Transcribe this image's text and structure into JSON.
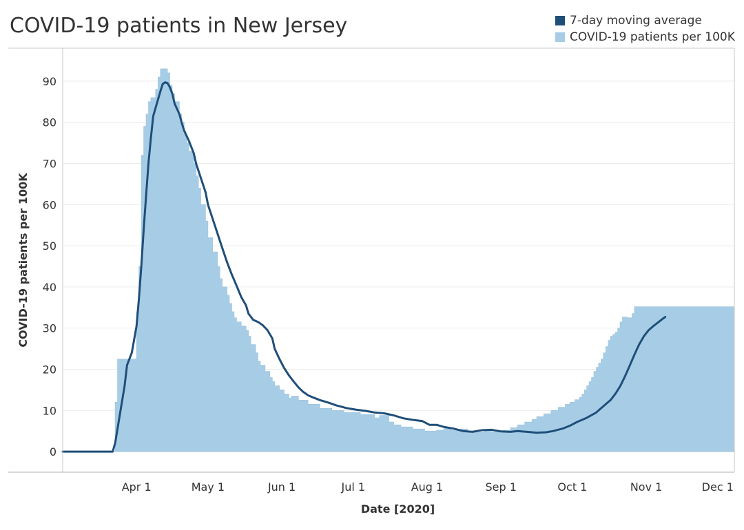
{
  "title": "COVID-19 patients in New Jersey",
  "legend": [
    {
      "label": "7-day moving average",
      "color": "#1f4e79"
    },
    {
      "label": "COVID-19 patients per 100K",
      "color": "#a7cde6"
    }
  ],
  "chart_data": {
    "type": "area",
    "title": "COVID-19 patients in New Jersey",
    "xlabel": "Date [2020]",
    "ylabel": "COVID-19 patients per 100K",
    "x_axis": {
      "start": "2020-03-01",
      "end": "2020-12-08"
    },
    "ylim": [
      -5,
      98
    ],
    "grid": true,
    "yticks": [
      0,
      10,
      20,
      30,
      40,
      50,
      60,
      70,
      80,
      90
    ],
    "xticks": [
      {
        "date": "2020-04-01",
        "label": "Apr 1"
      },
      {
        "date": "2020-05-01",
        "label": "May 1"
      },
      {
        "date": "2020-06-01",
        "label": "Jun 1"
      },
      {
        "date": "2020-07-01",
        "label": "Jul 1"
      },
      {
        "date": "2020-08-01",
        "label": "Aug 1"
      },
      {
        "date": "2020-09-01",
        "label": "Sep 1"
      },
      {
        "date": "2020-10-01",
        "label": "Oct 1"
      },
      {
        "date": "2020-11-01",
        "label": "Nov 1"
      },
      {
        "date": "2020-12-01",
        "label": "Dec 1"
      }
    ],
    "series": [
      {
        "name": "COVID-19 patients per 100K",
        "color": "#a7cde6",
        "style": "step-area",
        "points": [
          [
            "2020-03-01",
            0
          ],
          [
            "2020-03-22",
            0
          ],
          [
            "2020-03-23",
            12
          ],
          [
            "2020-03-24",
            22.5
          ],
          [
            "2020-03-31",
            22.5
          ],
          [
            "2020-04-01",
            34
          ],
          [
            "2020-04-02",
            45
          ],
          [
            "2020-04-03",
            72
          ],
          [
            "2020-04-04",
            79
          ],
          [
            "2020-04-05",
            82
          ],
          [
            "2020-04-06",
            85
          ],
          [
            "2020-04-07",
            86
          ],
          [
            "2020-04-09",
            88
          ],
          [
            "2020-04-10",
            91
          ],
          [
            "2020-04-11",
            93
          ],
          [
            "2020-04-14",
            92
          ],
          [
            "2020-04-15",
            89
          ],
          [
            "2020-04-16",
            87
          ],
          [
            "2020-04-17",
            85
          ],
          [
            "2020-04-19",
            82
          ],
          [
            "2020-04-20",
            80
          ],
          [
            "2020-04-21",
            77
          ],
          [
            "2020-04-22",
            75
          ],
          [
            "2020-04-23",
            73
          ],
          [
            "2020-04-25",
            70
          ],
          [
            "2020-04-26",
            67
          ],
          [
            "2020-04-27",
            64
          ],
          [
            "2020-04-28",
            60
          ],
          [
            "2020-04-30",
            56
          ],
          [
            "2020-05-01",
            52
          ],
          [
            "2020-05-03",
            48.5
          ],
          [
            "2020-05-05",
            45
          ],
          [
            "2020-05-06",
            42
          ],
          [
            "2020-05-07",
            40
          ],
          [
            "2020-05-09",
            38
          ],
          [
            "2020-05-10",
            36
          ],
          [
            "2020-05-11",
            34
          ],
          [
            "2020-05-12",
            32.5
          ],
          [
            "2020-05-13",
            31.5
          ],
          [
            "2020-05-15",
            30.5
          ],
          [
            "2020-05-17",
            29.5
          ],
          [
            "2020-05-18",
            28
          ],
          [
            "2020-05-19",
            26
          ],
          [
            "2020-05-21",
            24
          ],
          [
            "2020-05-22",
            22
          ],
          [
            "2020-05-23",
            21
          ],
          [
            "2020-05-25",
            19.5
          ],
          [
            "2020-05-27",
            18
          ],
          [
            "2020-05-28",
            17
          ],
          [
            "2020-05-29",
            16
          ],
          [
            "2020-05-31",
            15
          ],
          [
            "2020-06-02",
            14
          ],
          [
            "2020-06-04",
            13
          ],
          [
            "2020-06-05",
            13.5
          ],
          [
            "2020-06-08",
            12.5
          ],
          [
            "2020-06-12",
            11.5
          ],
          [
            "2020-06-17",
            10.5
          ],
          [
            "2020-06-22",
            10
          ],
          [
            "2020-06-27",
            9.5
          ],
          [
            "2020-07-04",
            9
          ],
          [
            "2020-07-10",
            8.2
          ],
          [
            "2020-07-12",
            8.8
          ],
          [
            "2020-07-16",
            7.2
          ],
          [
            "2020-07-18",
            6.5
          ],
          [
            "2020-07-21",
            6
          ],
          [
            "2020-07-26",
            5.5
          ],
          [
            "2020-07-31",
            5
          ],
          [
            "2020-08-05",
            5.2
          ],
          [
            "2020-08-08",
            5.7
          ],
          [
            "2020-08-11",
            5.2
          ],
          [
            "2020-08-15",
            5.5
          ],
          [
            "2020-08-18",
            5
          ],
          [
            "2020-08-22",
            4.7
          ],
          [
            "2020-08-25",
            5.1
          ],
          [
            "2020-08-28",
            4.8
          ],
          [
            "2020-09-02",
            5.2
          ],
          [
            "2020-09-05",
            5.8
          ],
          [
            "2020-09-08",
            6.5
          ],
          [
            "2020-09-11",
            7.2
          ],
          [
            "2020-09-14",
            7.8
          ],
          [
            "2020-09-16",
            8.5
          ],
          [
            "2020-09-19",
            9.2
          ],
          [
            "2020-09-22",
            10
          ],
          [
            "2020-09-25",
            10.8
          ],
          [
            "2020-09-28",
            11.5
          ],
          [
            "2020-09-30",
            12
          ],
          [
            "2020-10-02",
            12.6
          ],
          [
            "2020-10-04",
            13.2
          ],
          [
            "2020-10-05",
            14
          ],
          [
            "2020-10-06",
            15
          ],
          [
            "2020-10-07",
            16
          ],
          [
            "2020-10-08",
            17
          ],
          [
            "2020-10-09",
            18
          ],
          [
            "2020-10-10",
            19.5
          ],
          [
            "2020-10-11",
            20.5
          ],
          [
            "2020-10-12",
            21.5
          ],
          [
            "2020-10-13",
            22.5
          ],
          [
            "2020-10-14",
            24
          ],
          [
            "2020-10-15",
            25.5
          ],
          [
            "2020-10-16",
            27
          ],
          [
            "2020-10-17",
            28
          ],
          [
            "2020-10-18",
            28.5
          ],
          [
            "2020-10-19",
            29
          ],
          [
            "2020-10-20",
            30
          ],
          [
            "2020-10-21",
            31.5
          ],
          [
            "2020-10-22",
            32.7
          ],
          [
            "2020-10-24",
            32.5
          ],
          [
            "2020-10-26",
            33.5
          ],
          [
            "2020-10-27",
            35.2
          ],
          [
            "2020-10-30",
            35.2
          ]
        ]
      },
      {
        "name": "7-day moving average",
        "color": "#1f4e79",
        "style": "line",
        "points": [
          [
            "2020-03-01",
            0
          ],
          [
            "2020-03-22",
            0
          ],
          [
            "2020-03-23",
            2
          ],
          [
            "2020-03-25",
            9
          ],
          [
            "2020-03-27",
            16
          ],
          [
            "2020-03-28",
            21
          ],
          [
            "2020-03-30",
            24
          ],
          [
            "2020-04-01",
            30.5
          ],
          [
            "2020-04-02",
            37
          ],
          [
            "2020-04-03",
            45
          ],
          [
            "2020-04-04",
            54
          ],
          [
            "2020-04-05",
            62
          ],
          [
            "2020-04-06",
            70
          ],
          [
            "2020-04-07",
            76
          ],
          [
            "2020-04-08",
            81.5
          ],
          [
            "2020-04-10",
            85.5
          ],
          [
            "2020-04-11",
            87.5
          ],
          [
            "2020-04-12",
            89.3
          ],
          [
            "2020-04-13",
            89.7
          ],
          [
            "2020-04-14",
            89.5
          ],
          [
            "2020-04-15",
            88.5
          ],
          [
            "2020-04-16",
            87
          ],
          [
            "2020-04-17",
            84.5
          ],
          [
            "2020-04-19",
            82
          ],
          [
            "2020-04-20",
            79.8
          ],
          [
            "2020-04-21",
            78
          ],
          [
            "2020-04-23",
            75.5
          ],
          [
            "2020-04-25",
            72.5
          ],
          [
            "2020-04-26",
            70
          ],
          [
            "2020-04-28",
            66.5
          ],
          [
            "2020-04-30",
            63
          ],
          [
            "2020-05-01",
            60
          ],
          [
            "2020-05-03",
            56.5
          ],
          [
            "2020-05-05",
            53
          ],
          [
            "2020-05-07",
            49.5
          ],
          [
            "2020-05-09",
            46
          ],
          [
            "2020-05-11",
            43
          ],
          [
            "2020-05-13",
            40.3
          ],
          [
            "2020-05-15",
            37.5
          ],
          [
            "2020-05-17",
            35.5
          ],
          [
            "2020-05-18",
            33.5
          ],
          [
            "2020-05-20",
            32
          ],
          [
            "2020-05-22",
            31.5
          ],
          [
            "2020-05-24",
            30.7
          ],
          [
            "2020-05-26",
            29.5
          ],
          [
            "2020-05-28",
            27.5
          ],
          [
            "2020-05-29",
            25
          ],
          [
            "2020-05-31",
            22.5
          ],
          [
            "2020-06-02",
            20.3
          ],
          [
            "2020-06-04",
            18.5
          ],
          [
            "2020-06-06",
            17
          ],
          [
            "2020-06-08",
            15.6
          ],
          [
            "2020-06-10",
            14.5
          ],
          [
            "2020-06-12",
            13.7
          ],
          [
            "2020-06-14",
            13.2
          ],
          [
            "2020-06-17",
            12.5
          ],
          [
            "2020-06-20",
            12
          ],
          [
            "2020-06-24",
            11.2
          ],
          [
            "2020-06-28",
            10.6
          ],
          [
            "2020-07-02",
            10.2
          ],
          [
            "2020-07-06",
            9.9
          ],
          [
            "2020-07-10",
            9.5
          ],
          [
            "2020-07-14",
            9.3
          ],
          [
            "2020-07-18",
            8.8
          ],
          [
            "2020-07-22",
            8.1
          ],
          [
            "2020-07-26",
            7.7
          ],
          [
            "2020-07-30",
            7.4
          ],
          [
            "2020-08-02",
            6.5
          ],
          [
            "2020-08-05",
            6.5
          ],
          [
            "2020-08-08",
            6
          ],
          [
            "2020-08-12",
            5.6
          ],
          [
            "2020-08-16",
            5
          ],
          [
            "2020-08-20",
            4.8
          ],
          [
            "2020-08-24",
            5.2
          ],
          [
            "2020-08-28",
            5.3
          ],
          [
            "2020-09-01",
            4.9
          ],
          [
            "2020-09-05",
            4.8
          ],
          [
            "2020-09-08",
            5
          ],
          [
            "2020-09-12",
            4.8
          ],
          [
            "2020-09-16",
            4.6
          ],
          [
            "2020-09-20",
            4.7
          ],
          [
            "2020-09-23",
            5
          ],
          [
            "2020-09-27",
            5.6
          ],
          [
            "2020-09-30",
            6.3
          ],
          [
            "2020-10-03",
            7.2
          ],
          [
            "2020-10-07",
            8.2
          ],
          [
            "2020-10-11",
            9.5
          ],
          [
            "2020-10-14",
            11
          ],
          [
            "2020-10-17",
            12.5
          ],
          [
            "2020-10-19",
            14
          ],
          [
            "2020-10-21",
            15.8
          ],
          [
            "2020-10-23",
            18.2
          ],
          [
            "2020-10-25",
            20.8
          ],
          [
            "2020-10-27",
            23.5
          ],
          [
            "2020-10-29",
            26
          ],
          [
            "2020-10-31",
            28
          ],
          [
            "2020-11-02",
            29.5
          ],
          [
            "2020-11-04",
            30.5
          ],
          [
            "2020-11-06",
            31.4
          ],
          [
            "2020-11-08",
            32.3
          ],
          [
            "2020-11-09",
            32.7
          ]
        ]
      }
    ]
  }
}
